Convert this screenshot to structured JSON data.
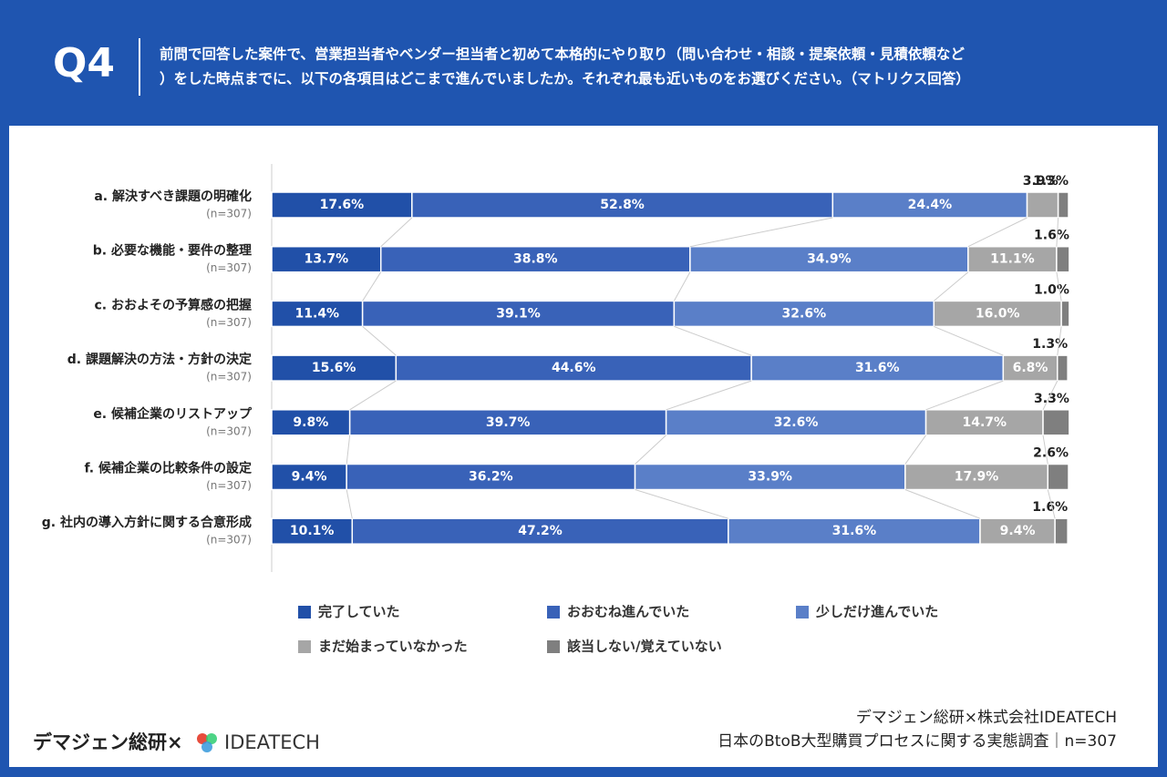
{
  "header": {
    "label": "Q4",
    "question": [
      "前問で回答した案件で、営業担当者やベンダー担当者と初めて本格的にやり取り（問い合わせ・相談・提案依頼・見積依頼など",
      "）をした時点までに、以下の各項目はどこまで進んでいましたか。それぞれ最も近いものをお選びください。（マトリクス回答）"
    ]
  },
  "chart_data": {
    "type": "stacked-bar-horizontal",
    "categories": [
      "a. 解決すべき課題の明確化",
      "b. 必要な機能・要件の整理",
      "c. おおよその予算感の把握",
      "d. 課題解決の方法・方針の決定",
      "e. 候補企業のリストアップ",
      "f. 候補企業の比較条件の設定",
      "g. 社内の導入方針に関する合意形成"
    ],
    "category_notes": [
      "(n=307)",
      "(n=307)",
      "(n=307)",
      "(n=307)",
      "(n=307)",
      "(n=307)",
      "(n=307)"
    ],
    "xlim": [
      0,
      100
    ],
    "series": [
      {
        "name": "完了していた",
        "color": "#2150a8",
        "values": [
          17.6,
          13.7,
          11.4,
          15.6,
          9.8,
          9.4,
          10.1
        ],
        "value_labels": [
          "17.6%",
          "13.7%",
          "11.4%",
          "15.6%",
          "9.8%",
          "9.4%",
          "10.1%"
        ]
      },
      {
        "name": "おおむね進んでいた",
        "color": "#3962b8",
        "values": [
          52.8,
          38.8,
          39.1,
          44.6,
          39.7,
          36.2,
          47.2
        ],
        "value_labels": [
          "52.8%",
          "38.8%",
          "39.1%",
          "44.6%",
          "39.7%",
          "36.2%",
          "47.2%"
        ]
      },
      {
        "name": "少しだけ進んでいた",
        "color": "#5a7fc8",
        "values": [
          24.4,
          34.9,
          32.6,
          31.6,
          32.6,
          33.9,
          31.6
        ],
        "value_labels": [
          "24.4%",
          "34.9%",
          "32.6%",
          "31.6%",
          "32.6%",
          "33.9%",
          "31.6%"
        ]
      },
      {
        "name": "まだ始まっていなかった",
        "color": "#a6a6a6",
        "values": [
          3.9,
          11.1,
          16.0,
          6.8,
          14.7,
          17.9,
          9.4
        ],
        "value_labels": [
          "3.9%",
          "11.1%",
          "16.0%",
          "6.8%",
          "14.7%",
          "17.9%",
          "9.4%"
        ]
      },
      {
        "name": "該当しない/覚えていない",
        "color": "#7f7f7f",
        "values": [
          1.3,
          1.6,
          1.0,
          1.3,
          3.3,
          2.6,
          1.6
        ],
        "value_labels": [
          "1.3%",
          "1.6%",
          "1.0%",
          "1.3%",
          "3.3%",
          "2.6%",
          "1.6%"
        ]
      }
    ]
  },
  "footer": {
    "brand": "デマジェン総研×",
    "logo": "IDEATECH",
    "credit": [
      "デマジェン総研×株式会社IDEATECH",
      "日本のBtoB大型購買プロセスに関する実態調査｜n=307"
    ]
  }
}
